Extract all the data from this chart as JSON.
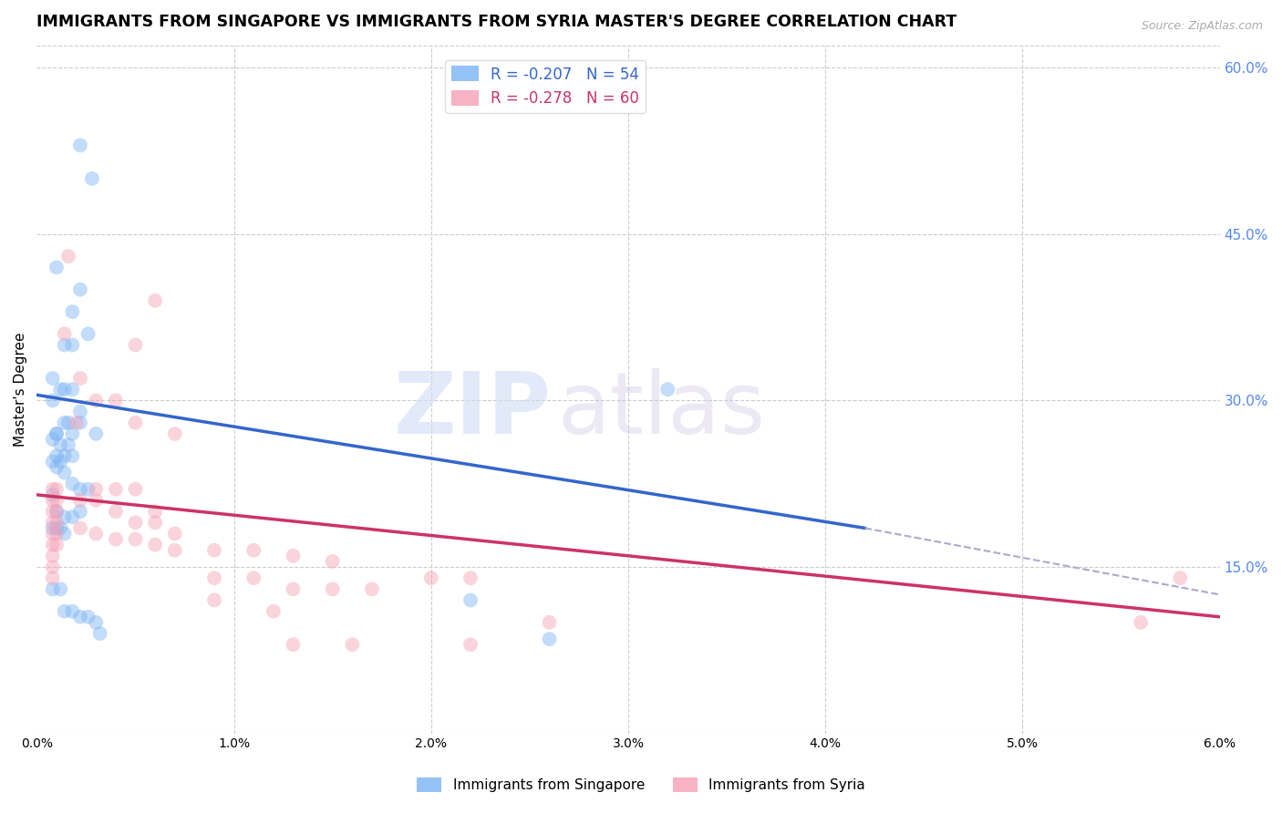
{
  "title": "IMMIGRANTS FROM SINGAPORE VS IMMIGRANTS FROM SYRIA MASTER'S DEGREE CORRELATION CHART",
  "source": "Source: ZipAtlas.com",
  "ylabel": "Master's Degree",
  "right_yticks": [
    0.0,
    0.15,
    0.3,
    0.45,
    0.6
  ],
  "right_yticklabels": [
    "",
    "15.0%",
    "30.0%",
    "45.0%",
    "60.0%"
  ],
  "xlim": [
    0.0,
    6.0
  ],
  "ylim": [
    0.0,
    0.62
  ],
  "legend_label1": "Immigrants from Singapore",
  "legend_label2": "Immigrants from Syria",
  "singapore_scatter": [
    [
      0.1,
      0.27
    ],
    [
      0.18,
      0.38
    ],
    [
      0.22,
      0.53
    ],
    [
      0.28,
      0.5
    ],
    [
      0.1,
      0.42
    ],
    [
      0.14,
      0.35
    ],
    [
      0.18,
      0.35
    ],
    [
      0.22,
      0.4
    ],
    [
      0.08,
      0.32
    ],
    [
      0.08,
      0.3
    ],
    [
      0.12,
      0.31
    ],
    [
      0.14,
      0.31
    ],
    [
      0.18,
      0.31
    ],
    [
      0.22,
      0.29
    ],
    [
      0.26,
      0.36
    ],
    [
      0.3,
      0.27
    ],
    [
      0.1,
      0.27
    ],
    [
      0.14,
      0.28
    ],
    [
      0.16,
      0.28
    ],
    [
      0.18,
      0.27
    ],
    [
      0.22,
      0.28
    ],
    [
      0.08,
      0.265
    ],
    [
      0.1,
      0.25
    ],
    [
      0.12,
      0.26
    ],
    [
      0.14,
      0.25
    ],
    [
      0.16,
      0.26
    ],
    [
      0.18,
      0.25
    ],
    [
      0.08,
      0.245
    ],
    [
      0.1,
      0.24
    ],
    [
      0.12,
      0.245
    ],
    [
      0.14,
      0.235
    ],
    [
      0.18,
      0.225
    ],
    [
      0.22,
      0.22
    ],
    [
      0.26,
      0.22
    ],
    [
      0.08,
      0.215
    ],
    [
      0.1,
      0.2
    ],
    [
      0.14,
      0.195
    ],
    [
      0.18,
      0.195
    ],
    [
      0.22,
      0.2
    ],
    [
      0.08,
      0.185
    ],
    [
      0.1,
      0.185
    ],
    [
      0.12,
      0.185
    ],
    [
      0.14,
      0.18
    ],
    [
      0.08,
      0.13
    ],
    [
      0.12,
      0.13
    ],
    [
      0.14,
      0.11
    ],
    [
      0.18,
      0.11
    ],
    [
      0.22,
      0.105
    ],
    [
      0.26,
      0.105
    ],
    [
      0.3,
      0.1
    ],
    [
      0.32,
      0.09
    ],
    [
      3.2,
      0.31
    ],
    [
      2.2,
      0.12
    ],
    [
      2.6,
      0.085
    ]
  ],
  "syria_scatter": [
    [
      0.08,
      0.22
    ],
    [
      0.08,
      0.21
    ],
    [
      0.08,
      0.2
    ],
    [
      0.08,
      0.19
    ],
    [
      0.08,
      0.18
    ],
    [
      0.08,
      0.17
    ],
    [
      0.08,
      0.16
    ],
    [
      0.08,
      0.15
    ],
    [
      0.08,
      0.14
    ],
    [
      0.1,
      0.22
    ],
    [
      0.1,
      0.21
    ],
    [
      0.1,
      0.2
    ],
    [
      0.1,
      0.19
    ],
    [
      0.1,
      0.18
    ],
    [
      0.1,
      0.17
    ],
    [
      0.14,
      0.36
    ],
    [
      0.16,
      0.43
    ],
    [
      0.2,
      0.28
    ],
    [
      0.5,
      0.35
    ],
    [
      0.6,
      0.39
    ],
    [
      0.3,
      0.22
    ],
    [
      0.4,
      0.22
    ],
    [
      0.5,
      0.22
    ],
    [
      0.6,
      0.2
    ],
    [
      0.22,
      0.32
    ],
    [
      0.3,
      0.3
    ],
    [
      0.4,
      0.3
    ],
    [
      0.5,
      0.28
    ],
    [
      0.7,
      0.27
    ],
    [
      0.22,
      0.21
    ],
    [
      0.3,
      0.21
    ],
    [
      0.4,
      0.2
    ],
    [
      0.5,
      0.19
    ],
    [
      0.6,
      0.19
    ],
    [
      0.7,
      0.18
    ],
    [
      0.22,
      0.185
    ],
    [
      0.3,
      0.18
    ],
    [
      0.4,
      0.175
    ],
    [
      0.5,
      0.175
    ],
    [
      0.6,
      0.17
    ],
    [
      0.7,
      0.165
    ],
    [
      0.9,
      0.165
    ],
    [
      1.1,
      0.165
    ],
    [
      1.3,
      0.16
    ],
    [
      1.5,
      0.155
    ],
    [
      0.9,
      0.14
    ],
    [
      1.1,
      0.14
    ],
    [
      1.3,
      0.13
    ],
    [
      1.5,
      0.13
    ],
    [
      1.7,
      0.13
    ],
    [
      2.0,
      0.14
    ],
    [
      0.9,
      0.12
    ],
    [
      1.2,
      0.11
    ],
    [
      1.3,
      0.08
    ],
    [
      1.6,
      0.08
    ],
    [
      2.2,
      0.14
    ],
    [
      2.6,
      0.1
    ],
    [
      2.2,
      0.08
    ],
    [
      5.8,
      0.14
    ],
    [
      5.6,
      0.1
    ]
  ],
  "singapore_line_x": [
    0.0,
    4.2
  ],
  "singapore_line_y": [
    0.305,
    0.185
  ],
  "syria_line_x": [
    0.0,
    6.0
  ],
  "syria_line_y": [
    0.215,
    0.105
  ],
  "dashed_line_x": [
    4.2,
    6.0
  ],
  "dashed_line_y": [
    0.185,
    0.125
  ],
  "watermark_zip": "ZIP",
  "watermark_atlas": "atlas",
  "background_color": "#ffffff",
  "grid_color": "#cccccc",
  "dot_alpha": 0.45,
  "dot_size": 130,
  "singapore_color": "#7ab3f5",
  "syria_color": "#f5a0b5",
  "singapore_line_color": "#3366cc",
  "syria_line_color": "#cc3366",
  "right_tick_color": "#5588ee",
  "title_fontsize": 12.5,
  "axis_label_fontsize": 11
}
